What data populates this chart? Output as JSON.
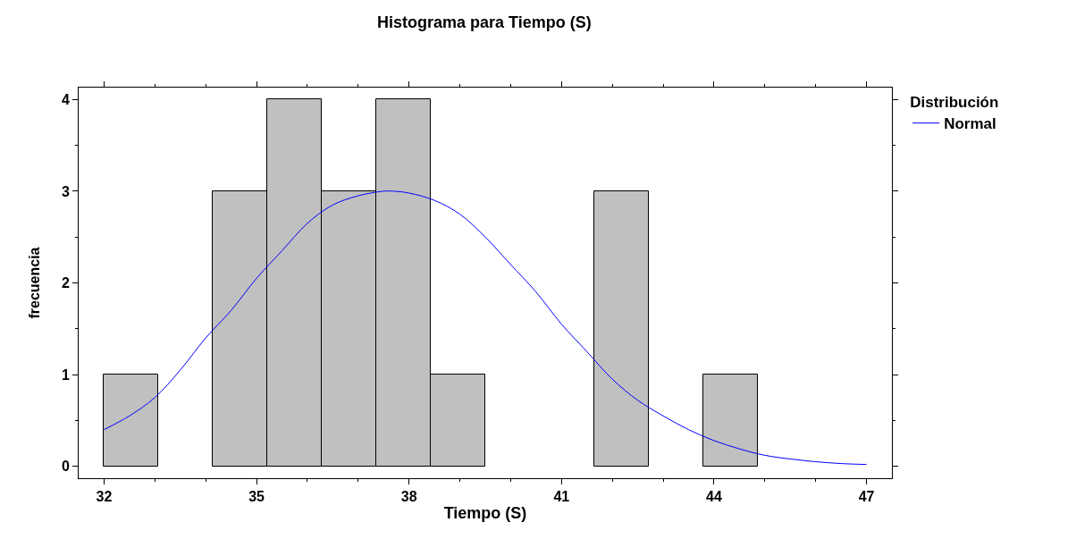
{
  "chart_data": {
    "type": "histogram",
    "title": "Histograma para Tiempo (S)",
    "xlabel": "Tiempo (S)",
    "ylabel": "frecuencia",
    "legend_title": "Distribución",
    "legend": "top right",
    "grid": false,
    "bins": [
      32,
      33.071,
      34.143,
      35.214,
      36.286,
      37.357,
      38.429,
      39.5,
      40.571,
      41.643,
      42.714,
      43.786,
      44.857,
      45.929,
      47
    ],
    "series": [
      {
        "color": "#c0c0c0",
        "values": [
          1,
          0,
          3,
          4,
          3,
          4,
          1,
          0,
          0,
          3,
          0,
          1,
          0,
          0
        ]
      },
      {
        "type": "line",
        "name": "Normal",
        "color": "#0000ff",
        "x": [
          32,
          32.5,
          33,
          33.5,
          34,
          34.5,
          35,
          35.5,
          36,
          36.5,
          37,
          37.5,
          37.7,
          38,
          38.5,
          39,
          39.5,
          40,
          40.5,
          41,
          41.5,
          42,
          42.5,
          43,
          43.5,
          44,
          44.5,
          45,
          45.5,
          46,
          46.5,
          47
        ],
        "values": [
          0.4,
          0.55,
          0.75,
          1.05,
          1.4,
          1.7,
          2.05,
          2.35,
          2.65,
          2.85,
          2.95,
          3.0,
          3.0,
          2.98,
          2.9,
          2.75,
          2.5,
          2.2,
          1.9,
          1.55,
          1.25,
          0.95,
          0.72,
          0.55,
          0.4,
          0.28,
          0.19,
          0.12,
          0.08,
          0.05,
          0.03,
          0.02
        ]
      }
    ],
    "xlim": [
      31.5,
      47.5
    ],
    "xticks": [
      32,
      35,
      38,
      41,
      44,
      47
    ],
    "ylim": [
      -0.13,
      4.13
    ],
    "yticks": [
      0,
      1,
      2,
      3,
      4
    ]
  }
}
